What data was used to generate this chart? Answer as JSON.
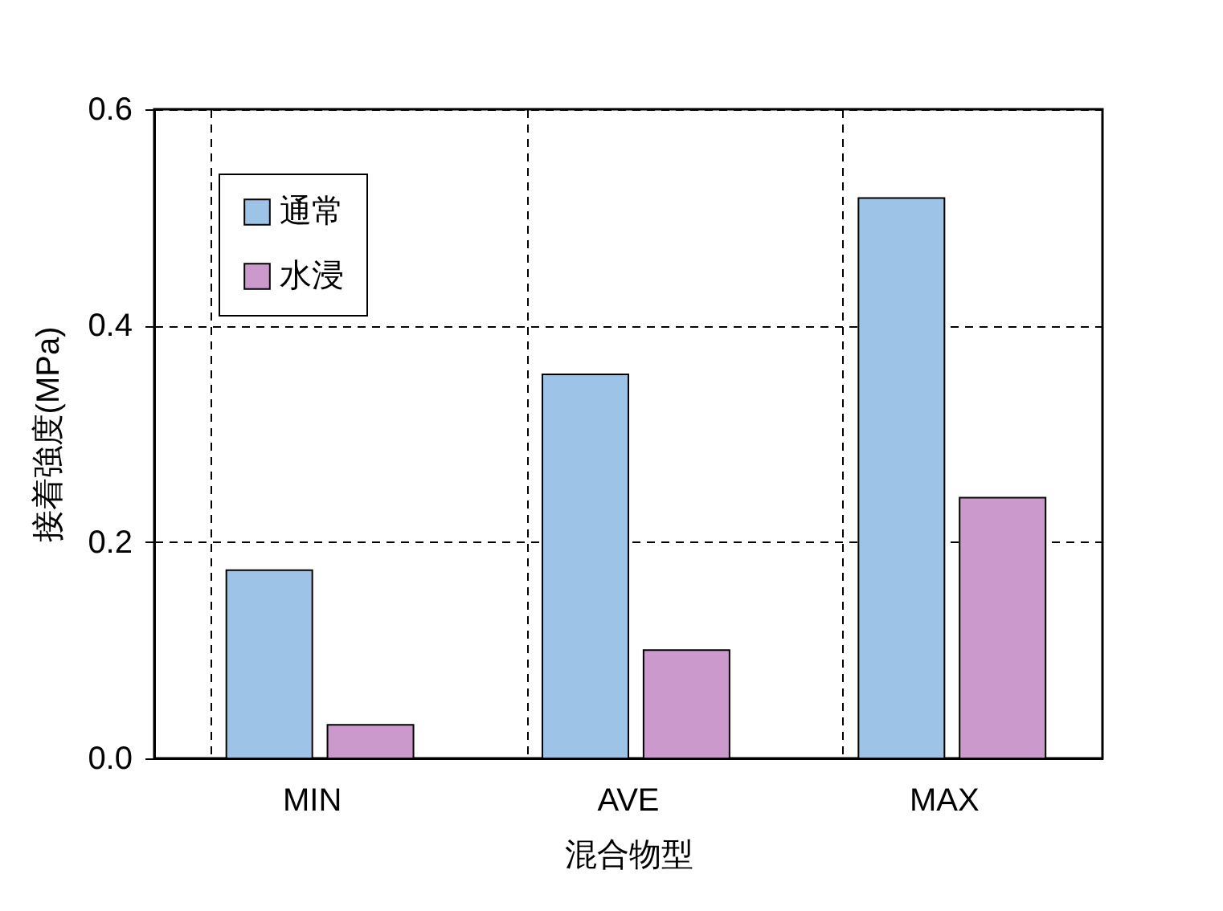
{
  "chart_data": {
    "type": "bar",
    "xlabel": "混合物型",
    "ylabel": "接着強度(MPa)",
    "categories": [
      "MIN",
      "AVE",
      "MAX"
    ],
    "series": [
      {
        "name": "通常",
        "color": "#9dc3e6",
        "values": [
          0.174,
          0.355,
          0.518
        ]
      },
      {
        "name": "水浸",
        "color": "#cc99cc",
        "values": [
          0.031,
          0.1,
          0.241
        ]
      }
    ],
    "ylim": [
      0,
      0.6
    ],
    "yticks": [
      {
        "value": 0,
        "label": "0.0"
      },
      {
        "value": 0.2,
        "label": "0.2"
      },
      {
        "value": 0.4,
        "label": "0.4"
      },
      {
        "value": 0.6,
        "label": "0.6"
      }
    ],
    "grid": true,
    "legend": "top left"
  }
}
